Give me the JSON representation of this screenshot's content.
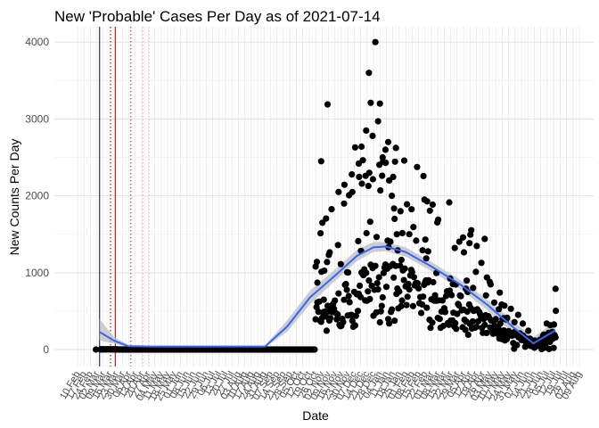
{
  "chart_data": {
    "type": "scatter",
    "title": "New 'Probable' Cases Per Day as of 2021-07-14",
    "xlabel": "Date",
    "ylabel": "New Counts Per Day",
    "ylim": [
      -220,
      4200
    ],
    "yticks": [
      0,
      1000,
      2000,
      3000,
      4000
    ],
    "grid": true,
    "x_axis": {
      "start_date": "2020-02-10",
      "end_date": "2021-08-09",
      "tick_step_days": 7,
      "tick_labels": [
        "10 Feb",
        "17 Feb",
        "24 Feb",
        "02 Mar",
        "09 Mar",
        "16 Mar",
        "23 Mar",
        "30 Mar",
        "06 Apr",
        "13 Apr",
        "20 Apr",
        "27 Apr",
        "04 May",
        "11 May",
        "18 May",
        "25 May",
        "01 Jun",
        "08 Jun",
        "15 Jun",
        "22 Jun",
        "29 Jun",
        "06 Jul",
        "13 Jul",
        "20 Jul",
        "27 Jul",
        "03 Aug",
        "10 Aug",
        "17 Aug",
        "24 Aug",
        "31 Aug",
        "07 Sep",
        "14 Sep",
        "21 Sep",
        "28 Sep",
        "05 Oct",
        "12 Oct",
        "19 Oct",
        "26 Oct",
        "02 Nov",
        "09 Nov",
        "16 Nov",
        "23 Nov",
        "30 Nov",
        "07 Dec",
        "14 Dec",
        "21 Dec",
        "28 Dec",
        "04 Jan",
        "11 Jan",
        "18 Jan",
        "25 Jan",
        "01 Feb",
        "08 Feb",
        "15 Feb",
        "22 Feb",
        "01 Mar",
        "08 Mar",
        "15 Mar",
        "22 Mar",
        "29 Mar",
        "05 Apr",
        "12 Apr",
        "19 Apr",
        "26 Apr",
        "03 May",
        "10 May",
        "17 May",
        "24 May",
        "31 May",
        "07 Jun",
        "14 Jun",
        "21 Jun",
        "28 Jun",
        "05 Jul",
        "12 Jul",
        "19 Jul",
        "26 Jul",
        "02 Aug",
        "09 Aug"
      ]
    },
    "reference_lines": [
      {
        "date": "2020-03-05",
        "color": "#00008b",
        "style": "solid"
      },
      {
        "date": "2020-03-22",
        "color": "#8b0000",
        "style": "solid"
      },
      {
        "date": "2020-03-17",
        "color": "#8b0000",
        "style": "dotted"
      },
      {
        "date": "2020-04-08",
        "color": "#b22222",
        "style": "dotted"
      },
      {
        "date": "2020-04-21",
        "color": "#ff9999",
        "style": "dotted"
      },
      {
        "date": "2020-04-28",
        "color": "#ffc0cb",
        "style": "dotted"
      }
    ],
    "trend": {
      "color": "#3366ff",
      "band_color": "#bdbdbd",
      "points": [
        {
          "date": "2020-03-05",
          "value": 230,
          "lower": 120,
          "upper": 400
        },
        {
          "date": "2020-03-20",
          "value": 120,
          "lower": 80,
          "upper": 170
        },
        {
          "date": "2020-04-05",
          "value": 45,
          "lower": 30,
          "upper": 60
        },
        {
          "date": "2020-05-01",
          "value": 40,
          "lower": 30,
          "upper": 50
        },
        {
          "date": "2020-07-01",
          "value": 40,
          "lower": 30,
          "upper": 50
        },
        {
          "date": "2020-09-01",
          "value": 40,
          "lower": 30,
          "upper": 52
        },
        {
          "date": "2020-09-25",
          "value": 300,
          "lower": 230,
          "upper": 380
        },
        {
          "date": "2020-10-20",
          "value": 680,
          "lower": 590,
          "upper": 770
        },
        {
          "date": "2020-11-15",
          "value": 950,
          "lower": 880,
          "upper": 1030
        },
        {
          "date": "2020-12-10",
          "value": 1220,
          "lower": 1150,
          "upper": 1300
        },
        {
          "date": "2020-12-28",
          "value": 1330,
          "lower": 1270,
          "upper": 1400
        },
        {
          "date": "2021-01-10",
          "value": 1340,
          "lower": 1280,
          "upper": 1400
        },
        {
          "date": "2021-02-01",
          "value": 1270,
          "lower": 1210,
          "upper": 1330
        },
        {
          "date": "2021-03-01",
          "value": 1080,
          "lower": 1020,
          "upper": 1140
        },
        {
          "date": "2021-04-01",
          "value": 850,
          "lower": 790,
          "upper": 910
        },
        {
          "date": "2021-05-01",
          "value": 580,
          "lower": 510,
          "upper": 650
        },
        {
          "date": "2021-06-01",
          "value": 260,
          "lower": 180,
          "upper": 340
        },
        {
          "date": "2021-06-20",
          "value": 80,
          "lower": 10,
          "upper": 160
        },
        {
          "date": "2021-07-14",
          "value": 250,
          "lower": 130,
          "upper": 370
        }
      ]
    },
    "scatter_points": [
      {
        "date": "2020-10-26",
        "value": 1080
      },
      {
        "date": "2020-10-28",
        "value": 870
      },
      {
        "date": "2020-11-01",
        "value": 2450
      },
      {
        "date": "2020-11-08",
        "value": 3190
      },
      {
        "date": "2020-11-20",
        "value": 2050
      },
      {
        "date": "2020-11-26",
        "value": 1900
      },
      {
        "date": "2020-12-05",
        "value": 2050
      },
      {
        "date": "2020-12-08",
        "value": 2630
      },
      {
        "date": "2020-12-12",
        "value": 2420
      },
      {
        "date": "2020-12-15",
        "value": 2640
      },
      {
        "date": "2020-12-20",
        "value": 2850
      },
      {
        "date": "2020-12-23",
        "value": 3600
      },
      {
        "date": "2020-12-25",
        "value": 3210
      },
      {
        "date": "2020-12-27",
        "value": 2780
      },
      {
        "date": "2020-12-30",
        "value": 4000
      },
      {
        "date": "2021-01-02",
        "value": 2970
      },
      {
        "date": "2021-01-04",
        "value": 3200
      },
      {
        "date": "2021-01-07",
        "value": 2500
      },
      {
        "date": "2021-01-10",
        "value": 2600
      },
      {
        "date": "2021-01-13",
        "value": 2700
      },
      {
        "date": "2021-01-14",
        "value": 2200
      },
      {
        "date": "2021-01-17",
        "value": 2000
      },
      {
        "date": "2021-01-10",
        "value": 2430
      },
      {
        "date": "2021-01-20",
        "value": 1700
      },
      {
        "date": "2021-02-05",
        "value": 1500
      },
      {
        "date": "2021-04-28",
        "value": 1440
      },
      {
        "date": "2021-07-14",
        "value": 790
      }
    ]
  }
}
